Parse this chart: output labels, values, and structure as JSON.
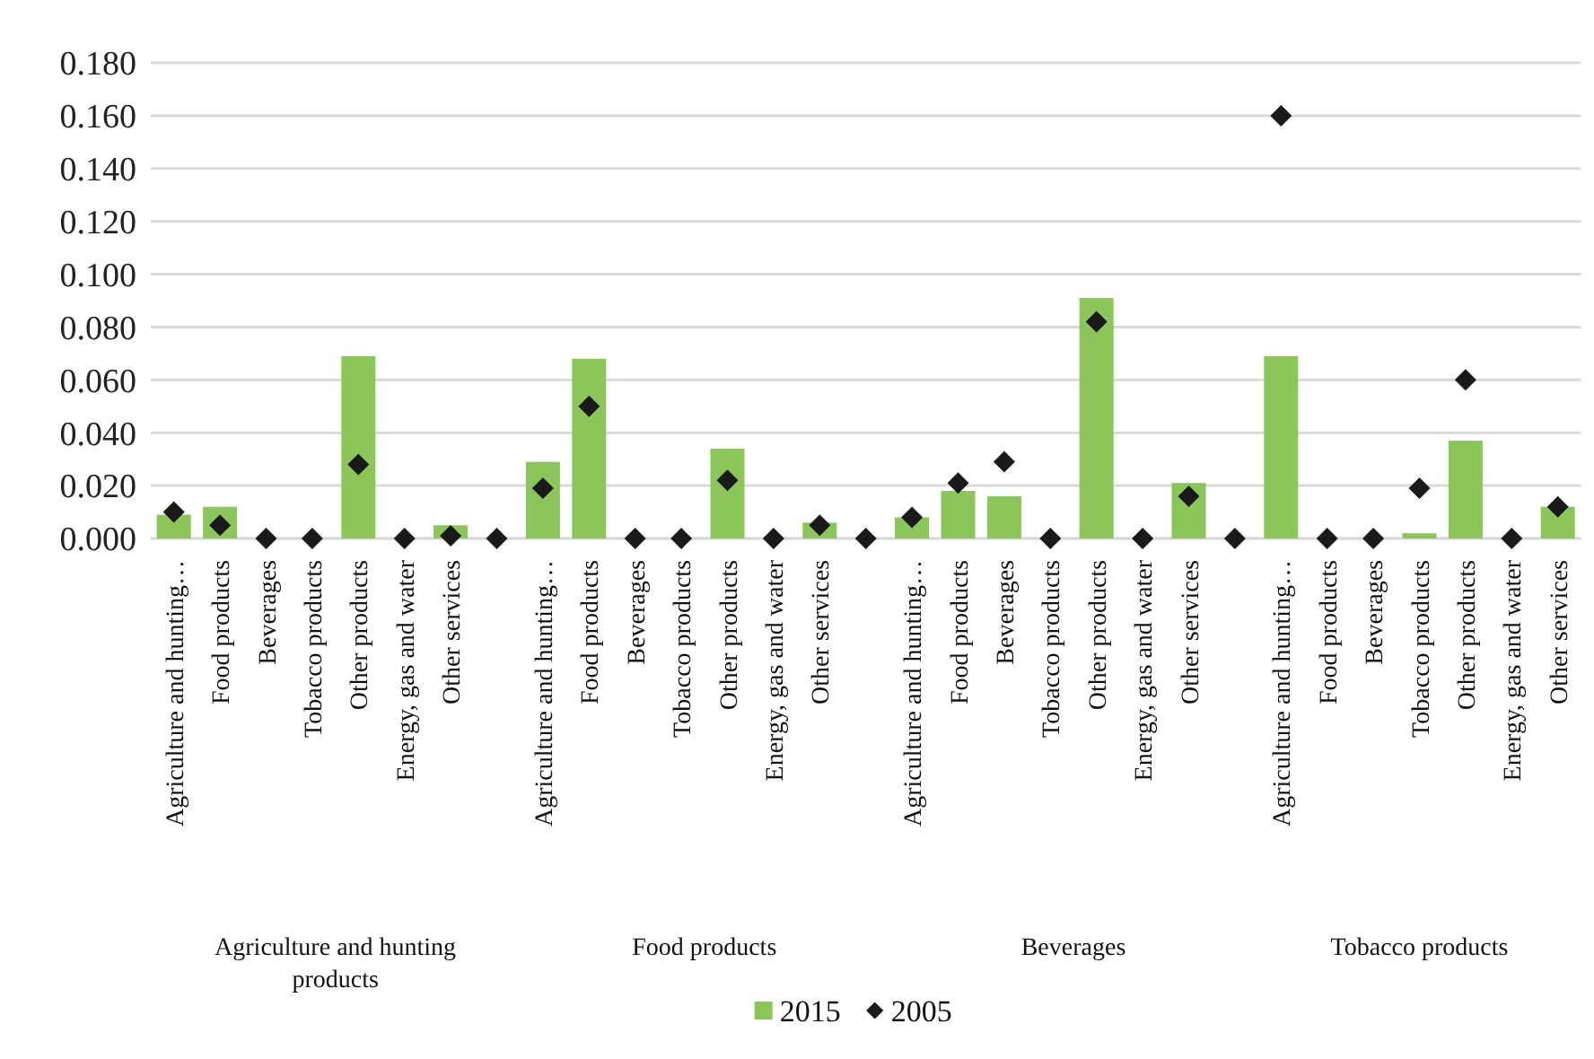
{
  "chart_data": {
    "type": "bar",
    "categories": [
      "Agriculture and hunting…",
      "Food products",
      "Beverages",
      "Tobacco products",
      "Other products",
      "Energy, gas and water",
      "Other services",
      null,
      "Agriculture and hunting…",
      "Food products",
      "Beverages",
      "Tobacco products",
      "Other products",
      "Energy, gas and water",
      "Other services",
      null,
      "Agriculture and hunting…",
      "Food products",
      "Beverages",
      "Tobacco products",
      "Other products",
      "Energy, gas and water",
      "Other services",
      null,
      "Agriculture and hunting…",
      "Food products",
      "Beverages",
      "Tobacco products",
      "Other products",
      "Energy, gas and water",
      "Other services"
    ],
    "series": [
      {
        "name": "2015",
        "color": "#8cc65a",
        "values": [
          0.009,
          0.012,
          0,
          0,
          0.069,
          0,
          0.005,
          0,
          0.029,
          0.068,
          0,
          0,
          0.034,
          0,
          0.006,
          0,
          0.008,
          0.018,
          0.016,
          0,
          0.091,
          0,
          0.021,
          0,
          0.069,
          0,
          0,
          0.002,
          0.037,
          0,
          0.012
        ]
      },
      {
        "name": "2005",
        "type": "scatter",
        "marker": "diamond",
        "color": "#1a1a1a",
        "values": [
          0.01,
          0.005,
          0,
          0,
          0.028,
          0,
          0.001,
          0,
          0.019,
          0.05,
          0,
          0,
          0.022,
          0,
          0.005,
          0,
          0.008,
          0.021,
          0.029,
          0,
          0.082,
          0,
          0.016,
          0,
          0.16,
          0,
          0,
          0.019,
          0.06,
          0,
          0.012
        ]
      }
    ],
    "ylim": [
      0,
      0.18
    ],
    "yticks": [
      {
        "value": 0,
        "label": "0.000"
      },
      {
        "value": 0.02,
        "label": "0.020"
      },
      {
        "value": 0.04,
        "label": "0.040"
      },
      {
        "value": 0.06,
        "label": "0.060"
      },
      {
        "value": 0.08,
        "label": "0.080"
      },
      {
        "value": 0.1,
        "label": "0.100"
      },
      {
        "value": 0.12,
        "label": "0.120"
      },
      {
        "value": 0.14,
        "label": "0.140"
      },
      {
        "value": 0.16,
        "label": "0.160"
      },
      {
        "value": 0.18,
        "label": "0.180"
      }
    ],
    "grid": "y",
    "legend": "bottom",
    "annotations": [
      "Agriculture and hunting products",
      "Food products",
      "Beverages",
      "Tobacco products"
    ]
  }
}
